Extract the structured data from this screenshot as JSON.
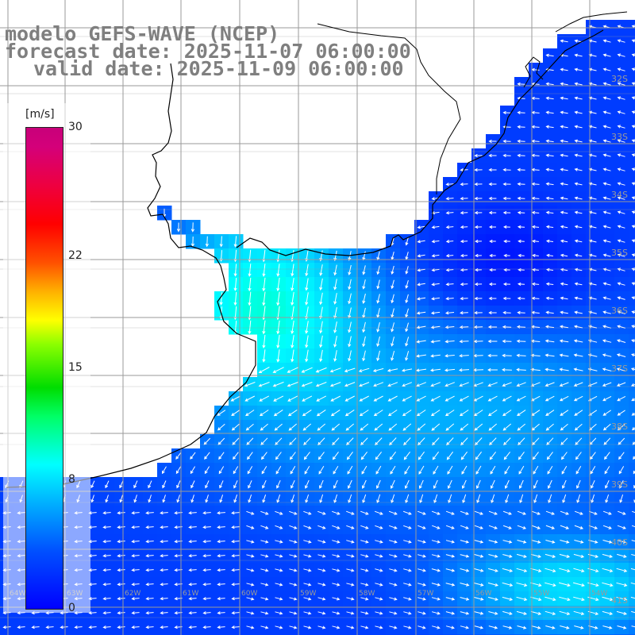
{
  "title": {
    "line1": "modelo GEFS-WAVE (NCEP)",
    "line2": "forecast date: 2025-11-07 06:00:00",
    "line3": "valid date: 2025-11-09 06:00:00"
  },
  "legend": {
    "unit": "[m/s]",
    "ticks": [
      {
        "value": 30,
        "label": "30"
      },
      {
        "value": 22,
        "label": "22"
      },
      {
        "value": 15,
        "label": "15"
      },
      {
        "value": 8,
        "label": "8"
      },
      {
        "value": 0,
        "label": "0"
      }
    ],
    "min": 0,
    "max": 30
  },
  "map": {
    "lat_labels": [
      "32S",
      "33S",
      "34S",
      "35S",
      "36S",
      "37S",
      "38S",
      "39S",
      "40S",
      "41S"
    ],
    "lon_labels": [
      "64W",
      "63W",
      "62W",
      "61W",
      "60W",
      "59W",
      "58W",
      "57W",
      "56W",
      "55W",
      "54W"
    ],
    "colors": {
      "land": "#ffffff",
      "coast": "#000000",
      "grid": "#9a9a9a",
      "arrow": "#ffffff",
      "wind_low": "#0000ff",
      "wind_mid": "#00ffff"
    }
  }
}
